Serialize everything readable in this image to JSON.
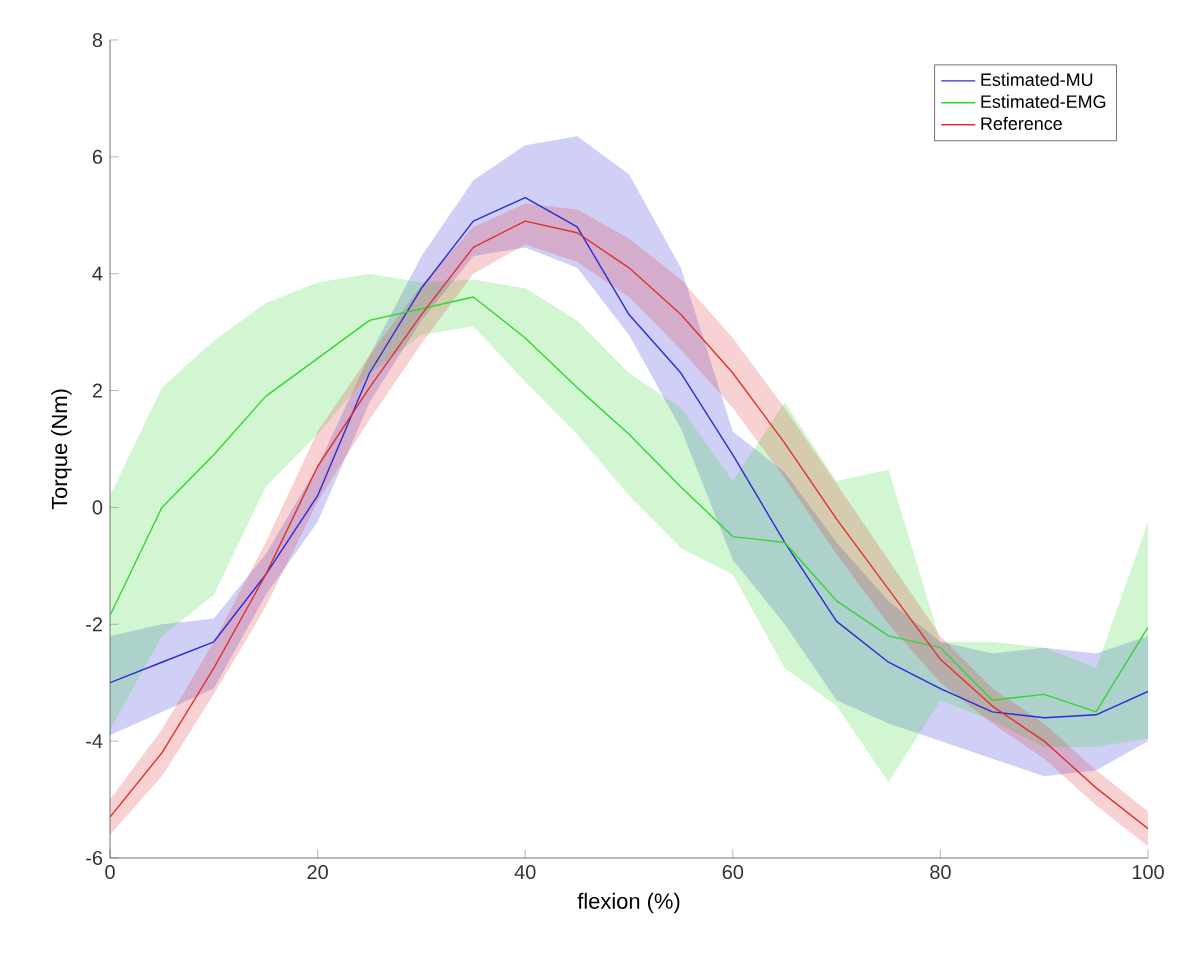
{
  "chart_data": {
    "type": "line",
    "xlabel": "flexion (%)",
    "ylabel": "Torque (Nm)",
    "xlim": [
      0,
      100
    ],
    "ylim": [
      -6,
      8
    ],
    "xticks": [
      0,
      20,
      40,
      60,
      80,
      100
    ],
    "yticks": [
      -6,
      -4,
      -2,
      0,
      2,
      4,
      6,
      8
    ],
    "grid": false,
    "legend": "top right",
    "marker": "none",
    "line_style": "solid",
    "x": [
      0,
      5,
      10,
      15,
      20,
      25,
      30,
      35,
      40,
      45,
      50,
      55,
      60,
      65,
      70,
      75,
      80,
      85,
      90,
      95,
      100
    ],
    "series": [
      {
        "name": "Estimated-MU",
        "color": "#2b2bd6",
        "values": [
          -3.0,
          -2.65,
          -2.3,
          -1.15,
          0.2,
          2.3,
          3.75,
          4.9,
          5.3,
          4.8,
          3.3,
          2.3,
          0.9,
          -0.6,
          -1.95,
          -2.65,
          -3.1,
          -3.5,
          -3.6,
          -3.55,
          -3.15
        ],
        "upper": [
          -2.2,
          -2.0,
          -1.9,
          -0.8,
          0.7,
          2.6,
          4.3,
          5.6,
          6.2,
          6.35,
          5.7,
          4.1,
          1.3,
          0.6,
          -0.6,
          -1.6,
          -2.3,
          -2.5,
          -2.4,
          -2.5,
          -2.2
        ],
        "lower": [
          -3.9,
          -3.5,
          -3.1,
          -1.5,
          -0.25,
          1.8,
          3.2,
          4.3,
          4.45,
          4.1,
          2.95,
          1.35,
          -0.9,
          -2.0,
          -3.3,
          -3.7,
          -4.0,
          -4.3,
          -4.6,
          -4.5,
          -4.0
        ]
      },
      {
        "name": "Estimated-EMG",
        "color": "#33d633",
        "values": [
          -1.85,
          0.0,
          0.9,
          1.9,
          2.55,
          3.2,
          3.4,
          3.6,
          2.9,
          2.05,
          1.25,
          0.35,
          -0.5,
          -0.6,
          -1.6,
          -2.2,
          -2.4,
          -3.3,
          -3.2,
          -3.5,
          -2.05
        ],
        "upper": [
          0.2,
          2.05,
          2.85,
          3.5,
          3.85,
          4.0,
          3.85,
          3.9,
          3.75,
          3.2,
          2.3,
          1.7,
          0.45,
          1.8,
          0.45,
          0.65,
          -2.3,
          -2.3,
          -2.4,
          -2.75,
          -0.25
        ],
        "lower": [
          -3.8,
          -2.2,
          -1.5,
          0.35,
          1.25,
          2.3,
          2.95,
          3.1,
          2.15,
          1.25,
          0.2,
          -0.7,
          -1.15,
          -2.75,
          -3.4,
          -4.7,
          -3.3,
          -3.65,
          -4.1,
          -4.1,
          -3.95
        ]
      },
      {
        "name": "Reference",
        "color": "#e03030",
        "values": [
          -5.3,
          -4.2,
          -2.75,
          -1.15,
          0.7,
          2.05,
          3.3,
          4.45,
          4.9,
          4.7,
          4.1,
          3.3,
          2.3,
          1.1,
          -0.2,
          -1.4,
          -2.6,
          -3.4,
          -4.0,
          -4.8,
          -5.5
        ],
        "upper": [
          -5.0,
          -3.8,
          -2.3,
          -0.6,
          1.3,
          2.6,
          3.8,
          4.8,
          5.2,
          5.1,
          4.6,
          3.9,
          2.9,
          1.7,
          0.4,
          -0.9,
          -2.2,
          -3.1,
          -3.7,
          -4.5,
          -5.2
        ],
        "lower": [
          -5.6,
          -4.6,
          -3.2,
          -1.7,
          0.1,
          1.5,
          2.8,
          4.0,
          4.5,
          4.2,
          3.6,
          2.7,
          1.7,
          0.5,
          -0.8,
          -2.0,
          -3.0,
          -3.7,
          -4.3,
          -5.1,
          -5.8
        ]
      }
    ]
  }
}
